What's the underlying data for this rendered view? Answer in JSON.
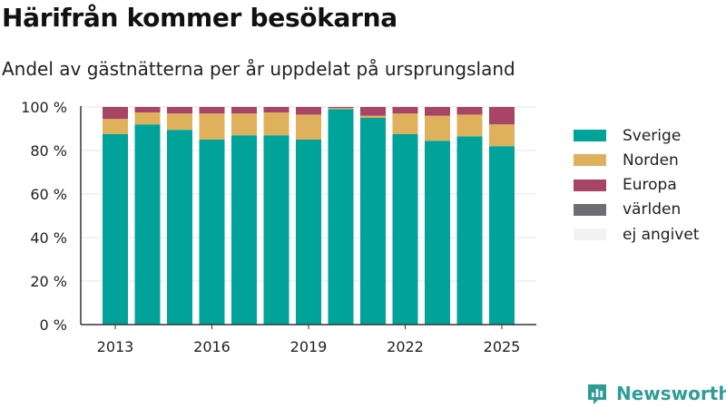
{
  "title": "Härifrån kommer besökarna",
  "subtitle": "Andel av gästnätterna per år uppdelat på ursprungsland",
  "brand": {
    "name": "Newsworthy",
    "color": "#2f9d96"
  },
  "chart_data": {
    "type": "bar",
    "stacked": true,
    "categories": [
      "2013",
      "2014",
      "2015",
      "2016",
      "2017",
      "2018",
      "2019",
      "2020",
      "2021",
      "2022",
      "2023",
      "2024",
      "2025"
    ],
    "x_ticks": [
      "2013",
      "2016",
      "2019",
      "2022",
      "2025"
    ],
    "y_ticks": [
      "0 %",
      "20 %",
      "40 %",
      "60 %",
      "80 %",
      "100 %"
    ],
    "ylim": [
      0,
      100
    ],
    "grid": true,
    "legend_position": "right",
    "series": [
      {
        "name": "Sverige",
        "color": "#00a39a",
        "values": [
          87.5,
          92,
          89.5,
          85,
          87,
          87,
          85,
          99,
          95,
          87.5,
          84.5,
          86.5,
          82
        ]
      },
      {
        "name": "Norden",
        "color": "#e0b15d",
        "values": [
          7,
          5.5,
          7.5,
          12,
          10,
          10.5,
          11.5,
          0.5,
          1,
          9.5,
          11.5,
          10,
          10
        ]
      },
      {
        "name": "Europa",
        "color": "#a84466",
        "values": [
          5.5,
          2.5,
          3,
          3,
          3,
          2.5,
          3.5,
          0.5,
          4,
          3,
          4,
          3.5,
          8
        ]
      },
      {
        "name": "världen",
        "color": "#6e6e72",
        "values": [
          0,
          0,
          0,
          0,
          0,
          0,
          0,
          0,
          0,
          0,
          0,
          0,
          0
        ]
      },
      {
        "name": "ej angivet",
        "color": "#f2f2f4",
        "values": [
          0,
          0,
          0,
          0,
          0,
          0,
          0,
          0,
          0,
          0,
          0,
          0,
          0
        ]
      }
    ]
  }
}
